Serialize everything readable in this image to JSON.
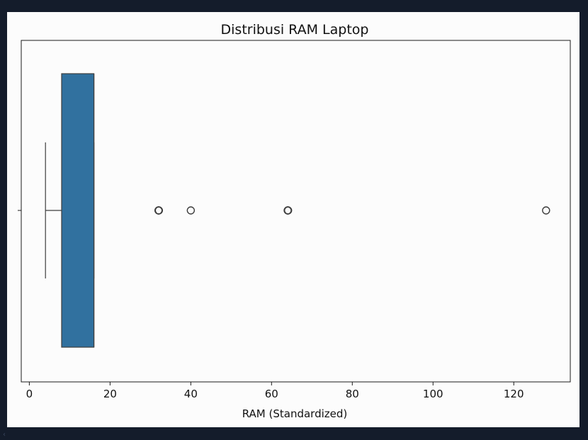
{
  "chart_data": {
    "type": "box",
    "orientation": "horizontal",
    "title": "Distribusi RAM Laptop",
    "xlabel": "RAM (Standardized)",
    "ylabel": "",
    "xlim": [
      -2,
      134
    ],
    "xticks": [
      0,
      20,
      40,
      60,
      80,
      100,
      120
    ],
    "box": {
      "whisker_low": 4,
      "q1": 8,
      "median": 16,
      "q3": 16,
      "whisker_high": 16,
      "color": "#31719f",
      "edge_color": "#3d3d3d"
    },
    "outliers": [
      32,
      40,
      64,
      128
    ],
    "grid": false
  },
  "ui": {
    "scroll_glyph": "‹"
  }
}
